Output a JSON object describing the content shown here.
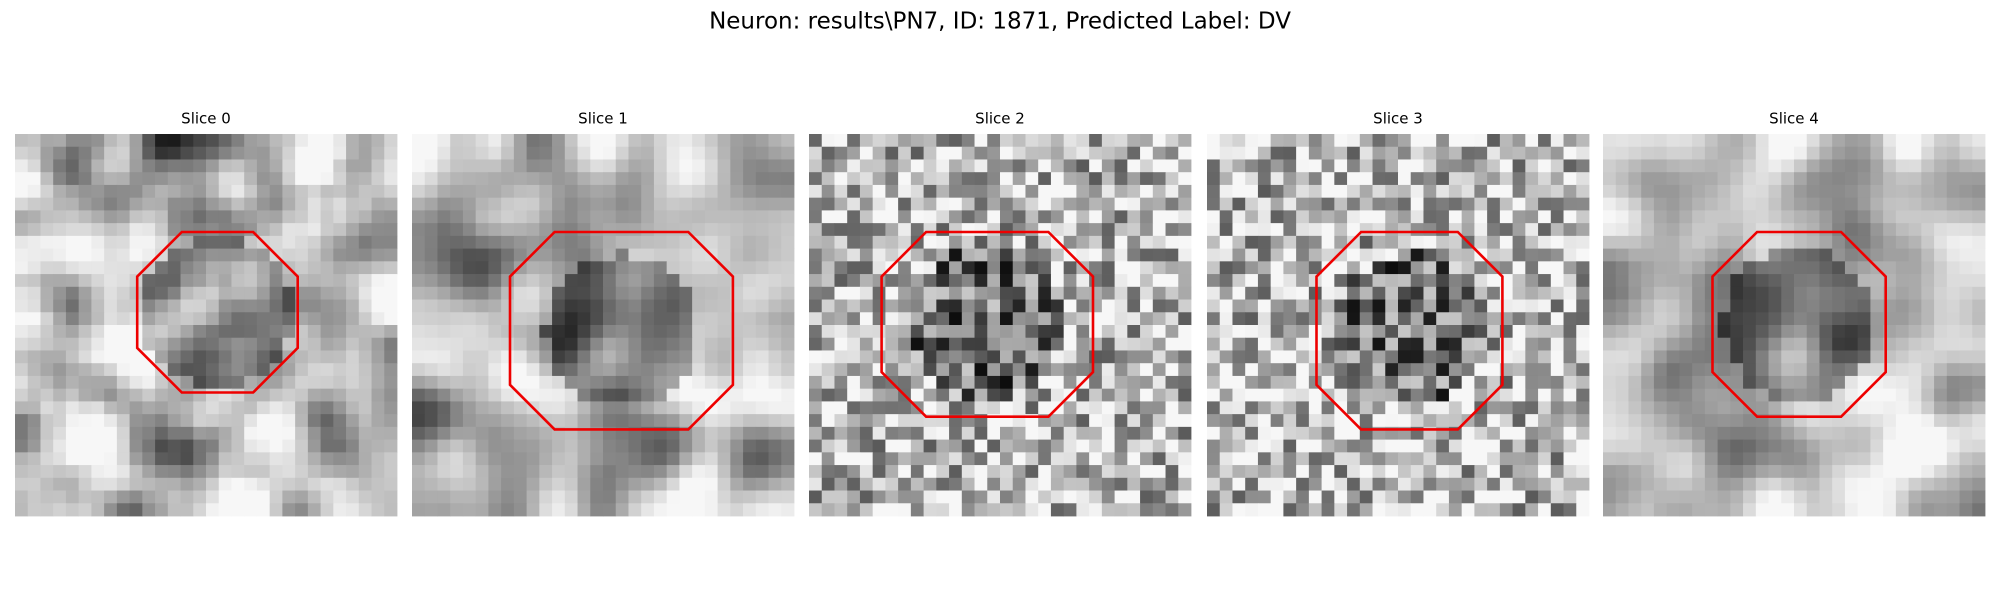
{
  "title": "Neuron: results\\PN7, ID: 1871, Predicted Label: DV",
  "panels": [
    {
      "title": "Slice 0"
    },
    {
      "title": "Slice 1"
    },
    {
      "title": "Slice 2"
    },
    {
      "title": "Slice 3"
    },
    {
      "title": "Slice 4"
    }
  ]
}
